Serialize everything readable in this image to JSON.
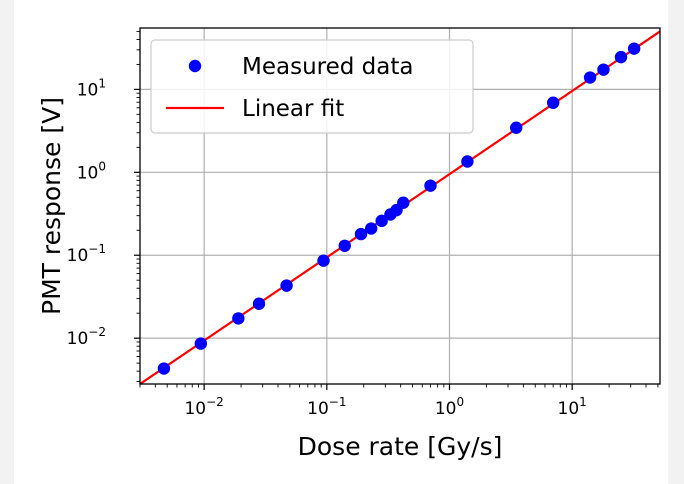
{
  "chart_data": {
    "type": "scatter",
    "xlabel": "Dose rate [Gy/s]",
    "ylabel": "PMT response [V]",
    "xscale": "log",
    "yscale": "log",
    "xlim": [
      0.003,
      52
    ],
    "ylim": [
      0.0028,
      55
    ],
    "x_ticks": [
      {
        "value": 0.01,
        "base": "10",
        "exp": "−2"
      },
      {
        "value": 0.1,
        "base": "10",
        "exp": "−1"
      },
      {
        "value": 1,
        "base": "10",
        "exp": "0"
      },
      {
        "value": 10,
        "base": "10",
        "exp": "1"
      }
    ],
    "y_ticks": [
      {
        "value": 0.01,
        "base": "10",
        "exp": "−2"
      },
      {
        "value": 0.1,
        "base": "10",
        "exp": "−1"
      },
      {
        "value": 1,
        "base": "10",
        "exp": "0"
      },
      {
        "value": 10,
        "base": "10",
        "exp": "1"
      }
    ],
    "grid": true,
    "legend_position": "top-left",
    "series": [
      {
        "name": "Measured data",
        "kind": "markers",
        "color": "#0000ff",
        "x": [
          0.0047,
          0.0094,
          0.019,
          0.028,
          0.047,
          0.094,
          0.14,
          0.19,
          0.23,
          0.28,
          0.33,
          0.37,
          0.42,
          0.7,
          1.4,
          3.5,
          7.0,
          14,
          18,
          25,
          32
        ],
        "y": [
          0.0043,
          0.0086,
          0.0173,
          0.026,
          0.043,
          0.086,
          0.13,
          0.18,
          0.21,
          0.26,
          0.31,
          0.35,
          0.43,
          0.69,
          1.35,
          3.45,
          6.9,
          13.9,
          17.3,
          24.5,
          31
        ]
      },
      {
        "name": "Linear fit",
        "kind": "line",
        "color": "#ff0000",
        "x": [
          0.003,
          52
        ],
        "y": [
          0.0028,
          50
        ]
      }
    ]
  }
}
